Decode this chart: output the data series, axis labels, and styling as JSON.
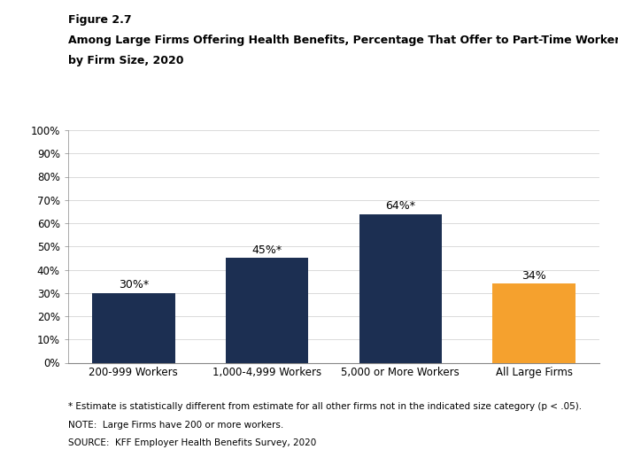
{
  "categories": [
    "200-999 Workers",
    "1,000-4,999 Workers",
    "5,000 or More Workers",
    "All Large Firms"
  ],
  "values": [
    30,
    45,
    64,
    34
  ],
  "bar_colors": [
    "#1c2f52",
    "#1c2f52",
    "#1c2f52",
    "#f5a12e"
  ],
  "bar_labels": [
    "30%*",
    "45%*",
    "64%*",
    "34%"
  ],
  "title_line1": "Figure 2.7",
  "title_line2": "Among Large Firms Offering Health Benefits, Percentage That Offer to Part-Time Workers,",
  "title_line3": "by Firm Size, 2020",
  "ylim": [
    0,
    100
  ],
  "yticks": [
    0,
    10,
    20,
    30,
    40,
    50,
    60,
    70,
    80,
    90,
    100
  ],
  "ytick_labels": [
    "0%",
    "10%",
    "20%",
    "30%",
    "40%",
    "50%",
    "60%",
    "70%",
    "80%",
    "90%",
    "100%"
  ],
  "footnote1": "* Estimate is statistically different from estimate for all other firms not in the indicated size category (p < .05).",
  "footnote2": "NOTE:  Large Firms have 200 or more workers.",
  "footnote3": "SOURCE:  KFF Employer Health Benefits Survey, 2020",
  "background_color": "#ffffff",
  "label_fontsize": 9,
  "tick_fontsize": 8.5,
  "title1_fontsize": 9,
  "title2_fontsize": 9,
  "footnote_fontsize": 7.5
}
